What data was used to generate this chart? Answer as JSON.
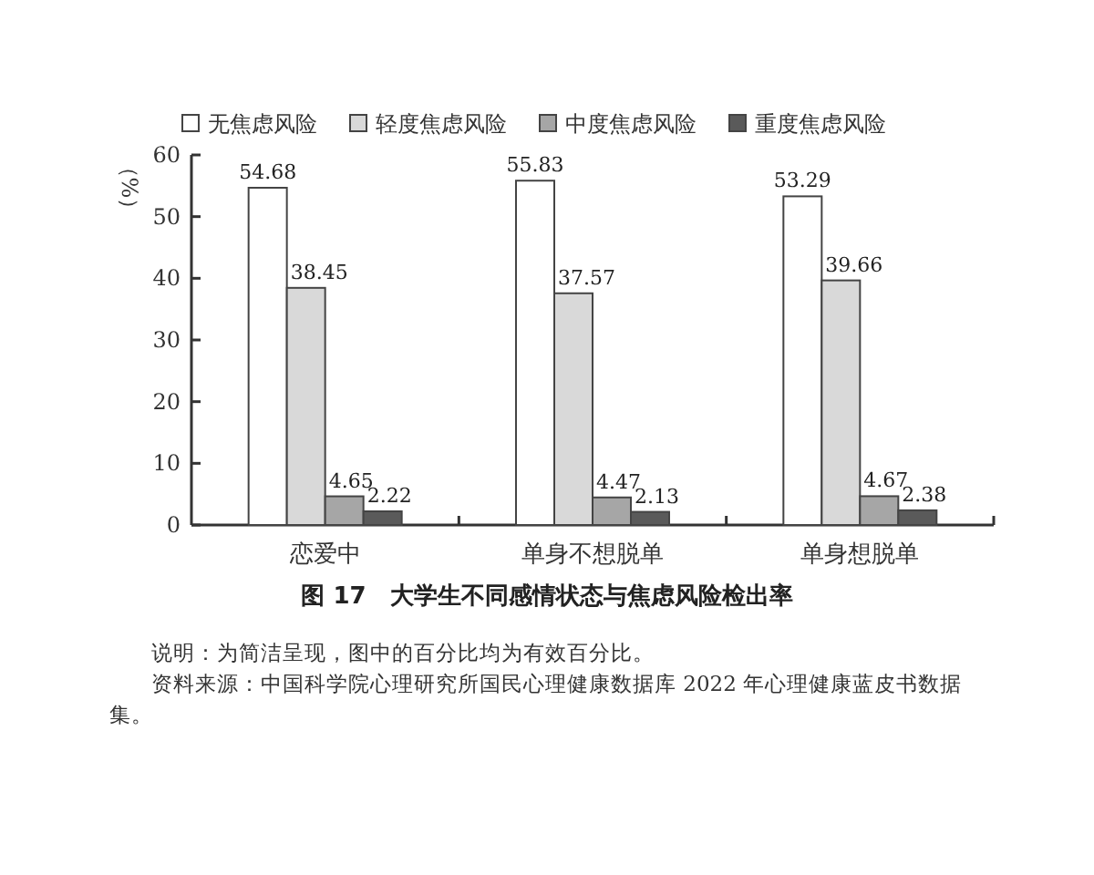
{
  "chart_data": {
    "type": "bar",
    "title": "图 17　大学生不同感情状态与焦虑风险检出率",
    "ylabel": "（%）",
    "categories": [
      "恋爱中",
      "单身不想脱单",
      "单身想脱单"
    ],
    "series": [
      {
        "name": "无焦虑风险",
        "color": "#ffffff",
        "values": [
          54.68,
          55.83,
          53.29
        ]
      },
      {
        "name": "轻度焦虑风险",
        "color": "#d9d9d9",
        "values": [
          38.45,
          37.57,
          39.66
        ]
      },
      {
        "name": "中度焦虑风险",
        "color": "#a6a6a6",
        "values": [
          4.65,
          4.47,
          4.67
        ]
      },
      {
        "name": "重度焦虑风险",
        "color": "#5a5a5a",
        "values": [
          2.22,
          2.13,
          2.38
        ]
      }
    ],
    "ylim": [
      0,
      60
    ],
    "yticks": [
      0,
      10,
      20,
      30,
      40,
      50,
      60
    ],
    "data_labels": true,
    "legend": "top",
    "grid": false,
    "annotations": [
      "说明：为简洁呈现，图中的百分比均为有效百分比。",
      "资料来源：中国科学院心理研究所国民心理健康数据库 2022 年心理健康蓝皮书数据集。"
    ]
  }
}
